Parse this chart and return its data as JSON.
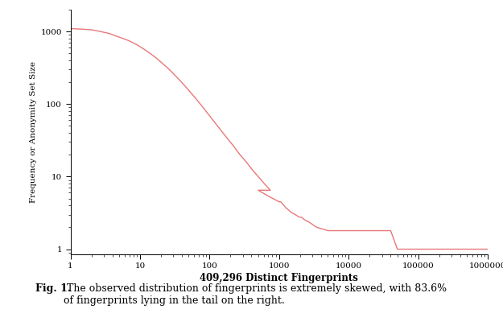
{
  "title": "",
  "xlabel": "409,296 Distinct Fingerprints",
  "ylabel": "Frequency or Anonymity Set Size",
  "line_color": "#e87878",
  "background_color": "#ffffff",
  "caption_bold": "Fig. 1.",
  "caption_normal": " The observed distribution of fingerprints is extremely skewed, with 83.6%\nof fingerprints lying in the tail on the right.",
  "x_ticks": [
    1,
    10,
    100,
    1000,
    10000,
    100000,
    1000000
  ],
  "y_ticks": [
    1,
    10,
    100,
    1000
  ],
  "curve_data_x": [
    1,
    1.5,
    2,
    2.5,
    3,
    3.5,
    4,
    4.5,
    5,
    6,
    7,
    8,
    9,
    10,
    12,
    14,
    17,
    20,
    25,
    30,
    37,
    45,
    55,
    67,
    82,
    100,
    122,
    150,
    183,
    224,
    274,
    335,
    410,
    500,
    612,
    748,
    500,
    612,
    748,
    915,
    1000,
    1050,
    1100,
    1150,
    1200,
    1250,
    1300,
    1400,
    1500,
    1600,
    1700,
    1800,
    1900,
    2000,
    2100,
    2200,
    2300,
    2400,
    2500,
    2600,
    2800,
    3000,
    3200,
    3500,
    3800,
    4200,
    4600,
    5000,
    5500,
    6000,
    6500,
    7000,
    7500,
    8000,
    8500,
    9000,
    9500,
    10000,
    11000,
    12000,
    13000,
    14000,
    15000,
    16000,
    17000,
    18000,
    20000,
    25000,
    30000,
    40000,
    50000,
    60000,
    80000,
    100000,
    150000,
    200000,
    300000,
    500000,
    700000,
    1000000
  ],
  "curve_data_y": [
    1100,
    1080,
    1060,
    1020,
    980,
    950,
    910,
    870,
    840,
    790,
    745,
    700,
    660,
    620,
    555,
    500,
    435,
    380,
    315,
    265,
    215,
    175,
    140,
    112,
    88,
    69,
    54,
    42,
    33,
    26,
    20,
    16,
    12.5,
    10,
    8,
    6.5,
    6.5,
    5.8,
    5.2,
    4.7,
    4.5,
    4.5,
    4.3,
    4.1,
    3.9,
    3.7,
    3.6,
    3.4,
    3.2,
    3.1,
    3.0,
    2.9,
    2.8,
    2.75,
    2.75,
    2.65,
    2.55,
    2.5,
    2.45,
    2.4,
    2.3,
    2.2,
    2.1,
    2.0,
    1.95,
    1.9,
    1.85,
    1.8,
    1.8,
    1.8,
    1.8,
    1.8,
    1.8,
    1.8,
    1.8,
    1.8,
    1.8,
    1.8,
    1.8,
    1.8,
    1.8,
    1.8,
    1.8,
    1.8,
    1.8,
    1.8,
    1.8,
    1.8,
    1.8,
    1.8,
    1,
    1,
    1,
    1,
    1,
    1,
    1,
    1,
    1,
    1
  ]
}
